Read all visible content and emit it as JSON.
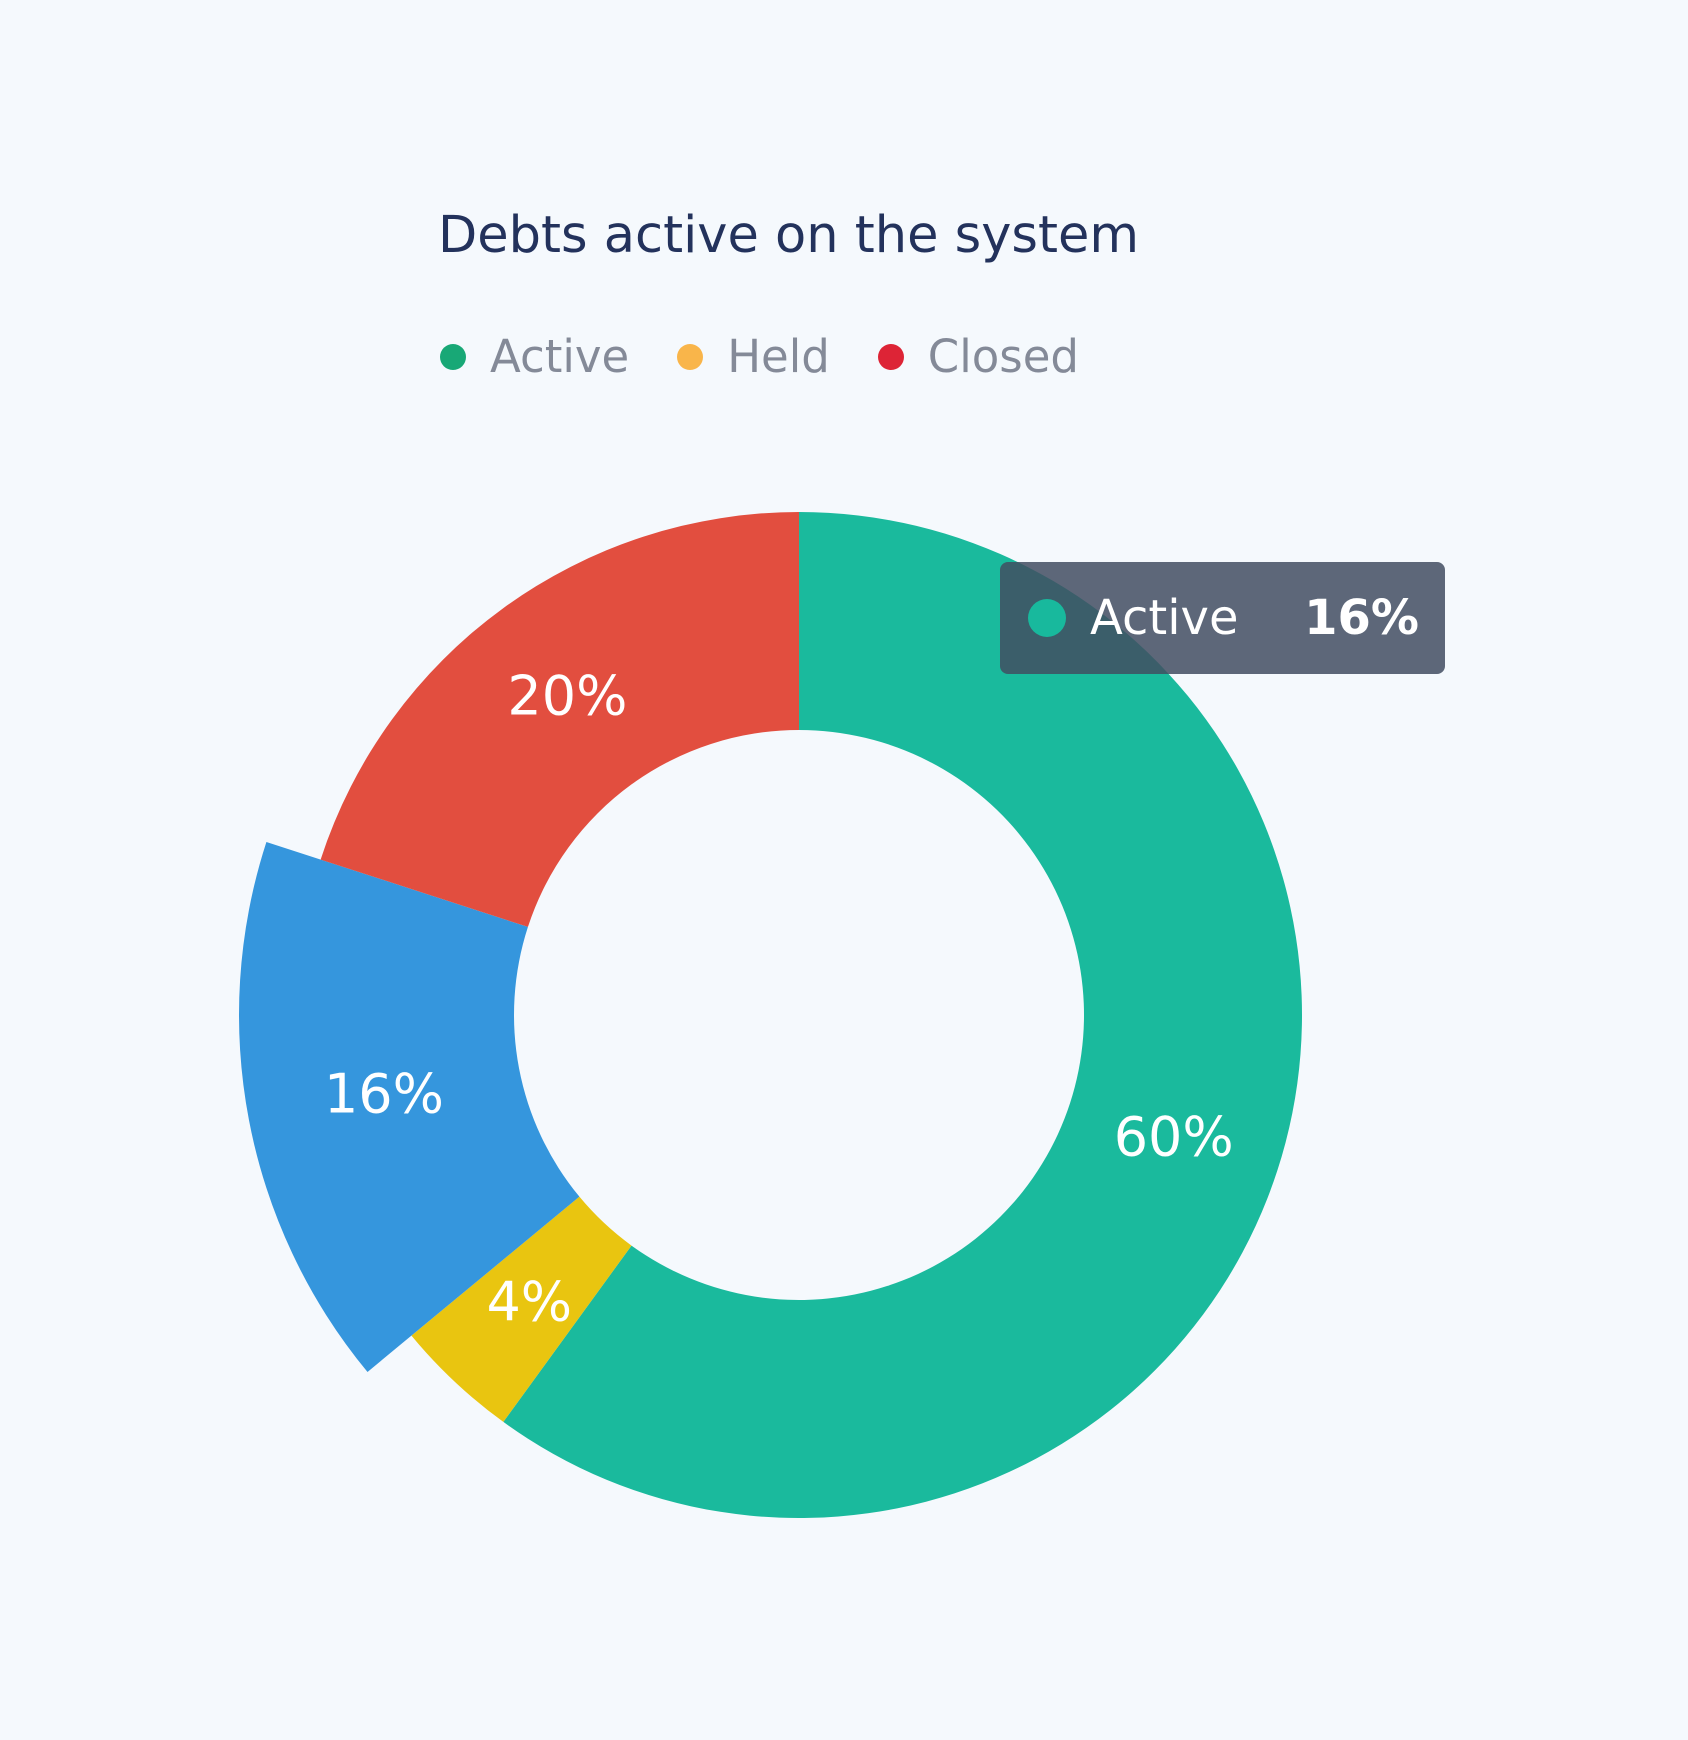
{
  "colors": {
    "background": "#f5f9fd",
    "title": "#23325c",
    "legend_text": "#848a98"
  },
  "legend": [
    {
      "label": "Active",
      "color": "#18a876"
    },
    {
      "label": "Held",
      "color": "#f9b54a"
    },
    {
      "label": "Closed",
      "color": "#dd2436"
    }
  ],
  "tooltip": {
    "label": "Active",
    "value": "16%",
    "color": "#18b99d"
  },
  "chart_data": {
    "type": "pie",
    "title": "Debts active on the system",
    "donut": true,
    "slices": [
      {
        "value": 60,
        "label": "60%",
        "color": "#1aba9d"
      },
      {
        "value": 4,
        "label": "4%",
        "color": "#e9c510"
      },
      {
        "value": 16,
        "label": "16%",
        "color": "#3596dd",
        "highlighted": true
      },
      {
        "value": 20,
        "label": "20%",
        "color": "#e24e3f"
      }
    ]
  }
}
